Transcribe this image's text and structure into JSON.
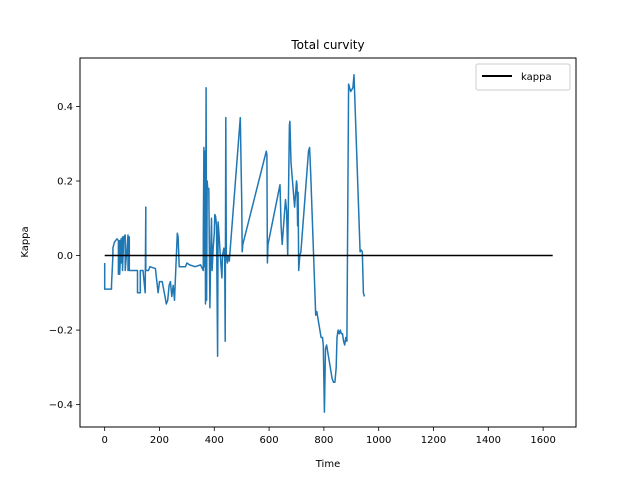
{
  "chart_data": {
    "type": "line",
    "title": "Total curvity",
    "xlabel": "Time",
    "ylabel": "Kappa",
    "xlim": [
      -90,
      1720
    ],
    "ylim": [
      -0.46,
      0.53
    ],
    "xticks": [
      0,
      200,
      400,
      600,
      800,
      1000,
      1200,
      1400,
      1600
    ],
    "xtick_labels": [
      "0",
      "200",
      "400",
      "600",
      "800",
      "1000",
      "1200",
      "1400",
      "1600"
    ],
    "yticks": [
      -0.4,
      -0.2,
      0.0,
      0.2,
      0.4
    ],
    "ytick_labels": [
      "−0.4",
      "−0.2",
      "0.0",
      "0.2",
      "0.4"
    ],
    "legend": {
      "position": "top-right",
      "entries": [
        {
          "label": "kappa",
          "color": "#000000"
        }
      ]
    },
    "grid": false,
    "series": [
      {
        "name": "",
        "color": "#1f77b4",
        "points": [
          [
            0,
            -0.02
          ],
          [
            0,
            -0.09
          ],
          [
            25,
            -0.09
          ],
          [
            25,
            -0.08
          ],
          [
            30,
            0.0
          ],
          [
            30,
            0.02
          ],
          [
            35,
            0.035
          ],
          [
            40,
            0.04
          ],
          [
            45,
            0.045
          ],
          [
            50,
            0.04
          ],
          [
            50,
            -0.05
          ],
          [
            55,
            0.04
          ],
          [
            55,
            -0.05
          ],
          [
            60,
            0.045
          ],
          [
            60,
            -0.02
          ],
          [
            65,
            0.05
          ],
          [
            65,
            -0.04
          ],
          [
            70,
            0.05
          ],
          [
            75,
            0.055
          ],
          [
            75,
            -0.04
          ],
          [
            85,
            0.055
          ],
          [
            85,
            -0.04
          ],
          [
            90,
            0.05
          ],
          [
            90,
            -0.04
          ],
          [
            95,
            -0.04
          ],
          [
            100,
            -0.04
          ],
          [
            120,
            -0.04
          ],
          [
            120,
            -0.1
          ],
          [
            130,
            -0.1
          ],
          [
            130,
            -0.04
          ],
          [
            140,
            -0.04
          ],
          [
            148,
            -0.1
          ],
          [
            150,
            0.13
          ],
          [
            150,
            -0.04
          ],
          [
            160,
            -0.04
          ],
          [
            165,
            -0.03
          ],
          [
            185,
            -0.035
          ],
          [
            195,
            -0.1
          ],
          [
            200,
            -0.07
          ],
          [
            210,
            -0.07
          ],
          [
            220,
            -0.11
          ],
          [
            225,
            -0.13
          ],
          [
            230,
            -0.12
          ],
          [
            235,
            -0.08
          ],
          [
            240,
            -0.07
          ],
          [
            245,
            -0.11
          ],
          [
            250,
            -0.08
          ],
          [
            255,
            -0.12
          ],
          [
            260,
            -0.03
          ],
          [
            265,
            0.06
          ],
          [
            268,
            0.05
          ],
          [
            272,
            -0.03
          ],
          [
            280,
            -0.03
          ],
          [
            295,
            -0.03
          ],
          [
            300,
            -0.02
          ],
          [
            310,
            -0.025
          ],
          [
            330,
            -0.03
          ],
          [
            350,
            -0.025
          ],
          [
            360,
            -0.04
          ],
          [
            360,
            0.06
          ],
          [
            362,
            0.29
          ],
          [
            364,
            -0.03
          ],
          [
            366,
            0.28
          ],
          [
            368,
            -0.13
          ],
          [
            370,
            0.45
          ],
          [
            372,
            -0.12
          ],
          [
            374,
            0.2
          ],
          [
            376,
            0.18
          ],
          [
            380,
            0.18
          ],
          [
            384,
            -0.14
          ],
          [
            386,
            -0.05
          ],
          [
            388,
            0.04
          ],
          [
            390,
            0.1
          ],
          [
            392,
            -0.04
          ],
          [
            396,
            0.02
          ],
          [
            400,
            0.06
          ],
          [
            402,
            0.11
          ],
          [
            405,
            0.105
          ],
          [
            408,
            0.08
          ],
          [
            410,
            -0.08
          ],
          [
            412,
            -0.27
          ],
          [
            414,
            0.09
          ],
          [
            418,
            0.05
          ],
          [
            420,
            0.02
          ],
          [
            425,
            -0.03
          ],
          [
            428,
            -0.06
          ],
          [
            430,
            0.0
          ],
          [
            435,
            0.02
          ],
          [
            438,
            -0.01
          ],
          [
            440,
            -0.23
          ],
          [
            442,
            0.37
          ],
          [
            444,
            0.0
          ],
          [
            448,
            -0.02
          ],
          [
            450,
            0.0
          ],
          [
            455,
            -0.015
          ],
          [
            495,
            0.37
          ],
          [
            498,
            0.24
          ],
          [
            500,
            0.15
          ],
          [
            502,
            0.01
          ],
          [
            504,
            0.03
          ],
          [
            590,
            0.28
          ],
          [
            592,
            0.27
          ],
          [
            594,
            -0.02
          ],
          [
            596,
            0.03
          ],
          [
            640,
            0.19
          ],
          [
            644,
            0.08
          ],
          [
            648,
            0.03
          ],
          [
            660,
            0.15
          ],
          [
            664,
            0.12
          ],
          [
            668,
            0.0
          ],
          [
            674,
            0.35
          ],
          [
            676,
            0.36
          ],
          [
            680,
            0.25
          ],
          [
            690,
            0.16
          ],
          [
            693,
            0.13
          ],
          [
            700,
            0.2
          ],
          [
            702,
            0.19
          ],
          [
            704,
            0.08
          ],
          [
            706,
            0.17
          ],
          [
            708,
            -0.04
          ],
          [
            712,
            0.0
          ],
          [
            716,
            0.01
          ],
          [
            744,
            0.28
          ],
          [
            748,
            0.29
          ],
          [
            752,
            0.22
          ],
          [
            770,
            -0.16
          ],
          [
            774,
            -0.15
          ],
          [
            790,
            -0.22
          ],
          [
            795,
            -0.22
          ],
          [
            798,
            -0.24
          ],
          [
            802,
            -0.42
          ],
          [
            806,
            -0.25
          ],
          [
            810,
            -0.24
          ],
          [
            830,
            -0.33
          ],
          [
            835,
            -0.34
          ],
          [
            840,
            -0.34
          ],
          [
            845,
            -0.3
          ],
          [
            848,
            -0.22
          ],
          [
            852,
            -0.2
          ],
          [
            856,
            -0.21
          ],
          [
            860,
            -0.2
          ],
          [
            864,
            -0.21
          ],
          [
            868,
            -0.21
          ],
          [
            872,
            -0.23
          ],
          [
            876,
            -0.24
          ],
          [
            880,
            -0.22
          ],
          [
            884,
            -0.23
          ],
          [
            890,
            0.46
          ],
          [
            894,
            0.45
          ],
          [
            898,
            0.44
          ],
          [
            906,
            0.45
          ],
          [
            910,
            0.485
          ],
          [
            932,
            0.01
          ],
          [
            936,
            0.015
          ],
          [
            940,
            0.01
          ],
          [
            944,
            -0.1
          ],
          [
            948,
            -0.11
          ]
        ]
      },
      {
        "name": "kappa",
        "color": "#000000",
        "points": [
          [
            0,
            0.0
          ],
          [
            1635,
            0.0
          ]
        ]
      }
    ]
  }
}
